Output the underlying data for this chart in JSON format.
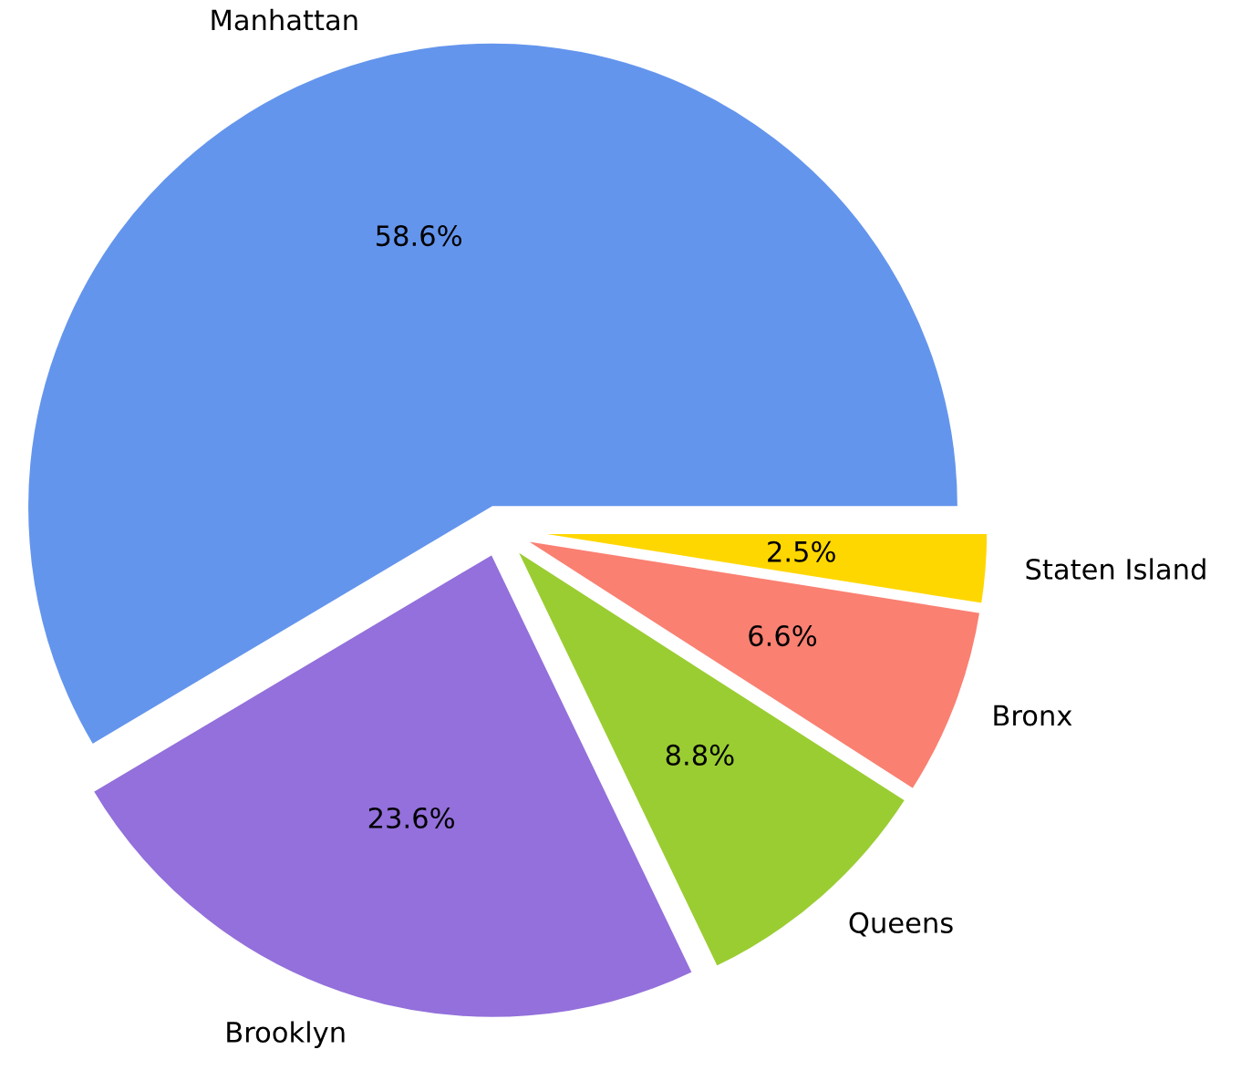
{
  "chart_data": {
    "type": "pie",
    "categories": [
      "Manhattan",
      "Brooklyn",
      "Queens",
      "Bronx",
      "Staten Island"
    ],
    "values": [
      58.6,
      23.6,
      8.8,
      6.6,
      2.5
    ],
    "colors": [
      "#6495ed",
      "#9370db",
      "#9acd32",
      "#fa8072",
      "#ffd700"
    ],
    "value_labels": [
      "58.6%",
      "23.6%",
      "8.8%",
      "6.6%",
      "2.5%"
    ],
    "legend": false
  }
}
